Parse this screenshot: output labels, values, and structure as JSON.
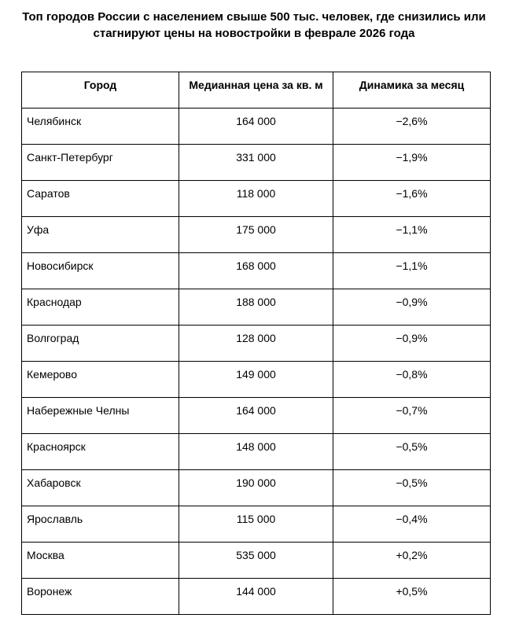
{
  "title": {
    "line1": "Топ городов России с населением свыше 500 тыс. человек, где снизились или",
    "line2": "стагнируют цены на новостройки в феврале 2026 года"
  },
  "table": {
    "columns": {
      "city": "Город",
      "price": "Медианная цена за кв. м",
      "change": "Динамика за месяц"
    },
    "rows": [
      {
        "city": "Челябинск",
        "price": "164 000",
        "change": "−2,6%"
      },
      {
        "city": "Санкт-Петербург",
        "price": "331 000",
        "change": "−1,9%"
      },
      {
        "city": "Саратов",
        "price": "118 000",
        "change": "−1,6%"
      },
      {
        "city": "Уфа",
        "price": "175 000",
        "change": "−1,1%"
      },
      {
        "city": "Новосибирск",
        "price": "168 000",
        "change": "−1,1%"
      },
      {
        "city": "Краснодар",
        "price": "188 000",
        "change": "−0,9%"
      },
      {
        "city": "Волгоград",
        "price": "128 000",
        "change": "−0,9%"
      },
      {
        "city": "Кемерово",
        "price": "149 000",
        "change": "−0,8%"
      },
      {
        "city": "Набережные Челны",
        "price": "164 000",
        "change": "−0,7%"
      },
      {
        "city": "Красноярск",
        "price": "148 000",
        "change": "−0,5%"
      },
      {
        "city": "Хабаровск",
        "price": "190 000",
        "change": "−0,5%"
      },
      {
        "city": "Ярославль",
        "price": "115 000",
        "change": "−0,4%"
      },
      {
        "city": "Москва",
        "price": "535 000",
        "change": "+0,2%"
      },
      {
        "city": "Воронеж",
        "price": "144 000",
        "change": "+0,5%"
      }
    ]
  },
  "colors": {
    "border": "#000000",
    "text": "#000000",
    "background": "#ffffff"
  }
}
